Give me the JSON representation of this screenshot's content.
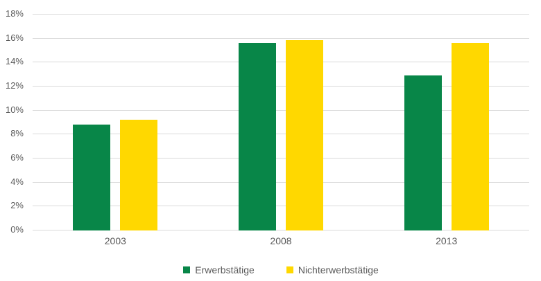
{
  "chart_data": {
    "type": "bar",
    "title": "",
    "categories": [
      "2003",
      "2008",
      "2013"
    ],
    "series": [
      {
        "name": "Erwerbstätige",
        "color": "#088648",
        "values": [
          8.8,
          15.6,
          12.9
        ]
      },
      {
        "name": "Nichterwerbstätige",
        "color": "#FFD800",
        "values": [
          9.2,
          15.8,
          15.6
        ]
      }
    ],
    "ylim": [
      0,
      18
    ],
    "y_tick_step": 2,
    "y_tick_labels": [
      "0%",
      "2%",
      "4%",
      "6%",
      "8%",
      "10%",
      "12%",
      "14%",
      "16%",
      "18%"
    ],
    "grid": true,
    "legend_position": "bottom"
  },
  "colors": {
    "background": "#FFFFFF",
    "gridline": "#D9D9D9",
    "axis_label": "#595959"
  }
}
